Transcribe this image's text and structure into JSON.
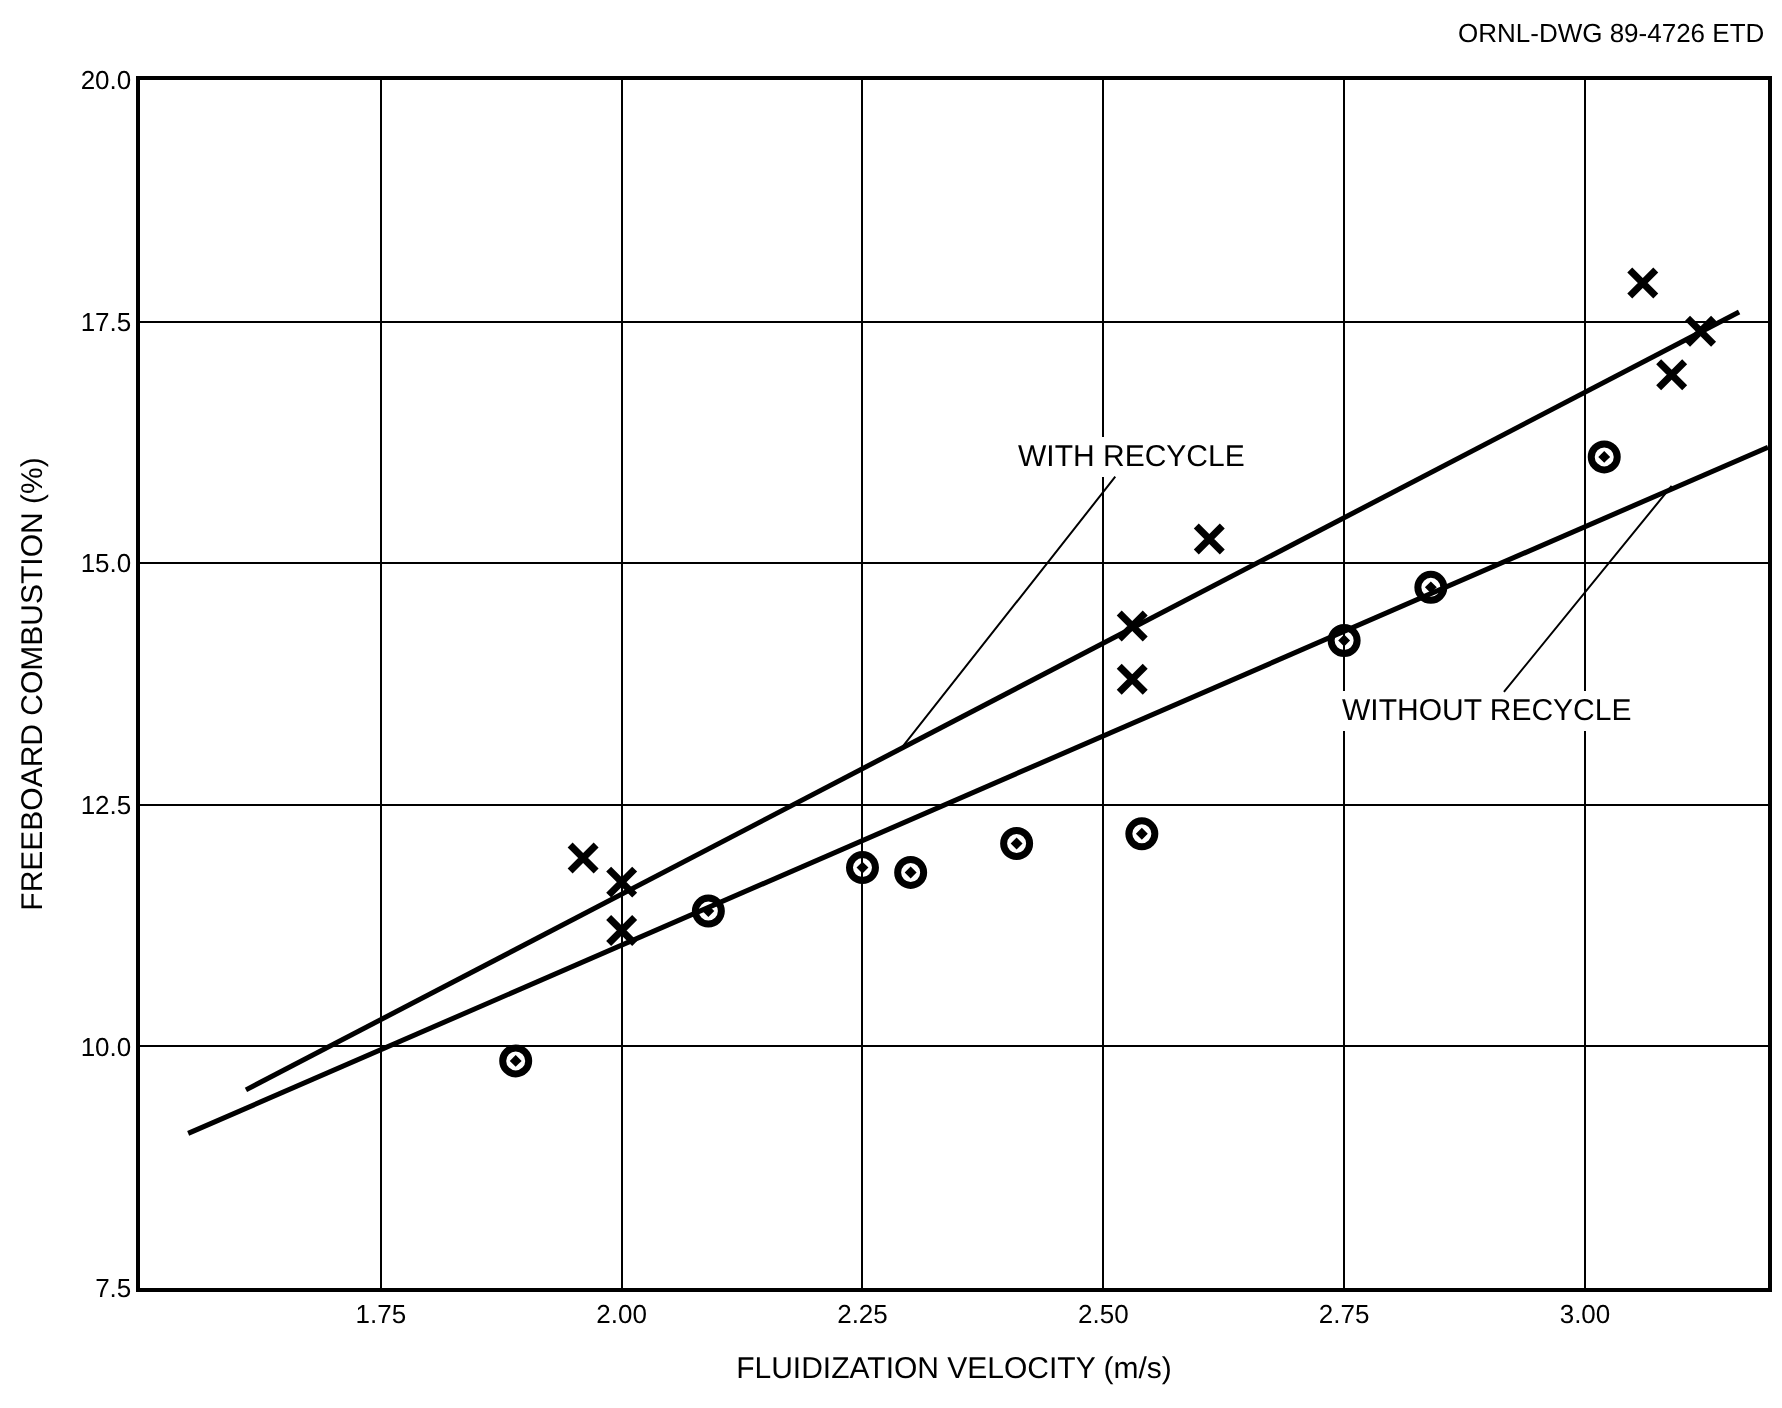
{
  "chart_data": {
    "type": "scatter",
    "xlabel": "FLUIDIZATION VELOCITY (m/s)",
    "ylabel": "FREEBOARD COMBUSTION (%)",
    "xlim": [
      1.5,
      3.19
    ],
    "ylim": [
      7.5,
      20
    ],
    "xticks": [
      {
        "value": 1.75,
        "label": "1.75"
      },
      {
        "value": 2.0,
        "label": "2.00"
      },
      {
        "value": 2.25,
        "label": "2.25"
      },
      {
        "value": 2.5,
        "label": "2.50"
      },
      {
        "value": 2.75,
        "label": "2.75"
      },
      {
        "value": 3.0,
        "label": "3.00"
      }
    ],
    "yticks": [
      {
        "value": 7.5,
        "label": "7.5"
      },
      {
        "value": 10,
        "label": "10.0"
      },
      {
        "value": 12.5,
        "label": "12.5"
      },
      {
        "value": 15,
        "label": "15.0"
      },
      {
        "value": 17.5,
        "label": "17.5"
      },
      {
        "value": 20,
        "label": "20.0"
      }
    ],
    "grid": true,
    "series": [
      {
        "marker": "cross",
        "color": "#000000",
        "x": [
          1.96,
          2.0,
          2.0,
          2.53,
          2.53,
          2.61,
          3.06,
          3.09,
          3.12
        ],
        "values": [
          11.95,
          11.7,
          11.2,
          14.35,
          13.8,
          15.25,
          17.9,
          16.95,
          17.4
        ]
      },
      {
        "marker": "circle",
        "color": "#000000",
        "x": [
          1.89,
          2.09,
          2.25,
          2.3,
          2.41,
          2.54,
          2.75,
          2.84,
          3.02
        ],
        "values": [
          9.85,
          11.4,
          11.85,
          11.8,
          12.1,
          12.2,
          14.2,
          14.75,
          16.1
        ]
      },
      {
        "type": "line",
        "marker": "none",
        "color": "#000000",
        "x": [
          1.61,
          3.16
        ],
        "values": [
          9.55,
          17.6
        ]
      },
      {
        "type": "line",
        "marker": "none",
        "color": "#000000",
        "x": [
          1.55,
          3.19
        ],
        "values": [
          9.1,
          16.2
        ]
      }
    ],
    "annotations": [
      {
        "text": "WITH RECYCLE",
        "x": 2.29,
        "y": 13.08
      },
      {
        "text": "WITHOUT RECYCLE",
        "x": 3.09,
        "y": 15.8
      },
      "ORNL-DWG 89-4726 ETD"
    ]
  }
}
